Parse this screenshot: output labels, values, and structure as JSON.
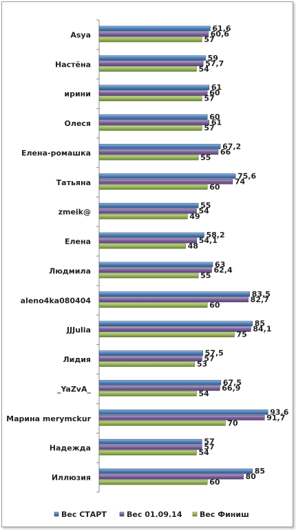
{
  "chart_data": {
    "type": "bar",
    "orientation": "horizontal",
    "categories": [
      "Asya",
      "Настёна",
      "ирини",
      "Олеся",
      "Елена-ромашка",
      "Татьяна",
      "zmeik@",
      "Елена",
      "Людмила",
      "aleno4ka080404",
      "JJJulia",
      "Лидия",
      "_YaZvA_",
      "Марина merymckur",
      "Надежда",
      "Иллюзия"
    ],
    "series": [
      {
        "name": "Вес СТАРТ",
        "color": "#4F81BD",
        "values": [
          61.6,
          59,
          61,
          60,
          67.2,
          75.6,
          55,
          58.2,
          63,
          83.5,
          85,
          57.5,
          67.5,
          93.6,
          57,
          85
        ]
      },
      {
        "name": "Вес 01.09.14",
        "color": "#8064A2",
        "values": [
          60.6,
          57.7,
          60,
          61,
          66,
          74,
          54,
          54.1,
          62.4,
          82.7,
          84.1,
          57,
          66.9,
          91.7,
          57,
          80
        ]
      },
      {
        "name": "Вес Финиш",
        "color": "#9BBB59",
        "values": [
          57,
          54,
          57,
          57,
          55,
          60,
          49,
          48,
          55,
          60,
          75,
          53,
          54,
          70,
          54,
          60
        ]
      }
    ],
    "labels": [
      [
        "61,6",
        "59",
        "61",
        "60",
        "67,2",
        "75,6",
        "55",
        "58,2",
        "63",
        "83,5",
        "85",
        "57,5",
        "67,5",
        "93,6",
        "57",
        "85"
      ],
      [
        "60,6",
        "57,7",
        "60",
        "61",
        "66",
        "74",
        "54",
        "54,1",
        "62,4",
        "82,7",
        "84,1",
        "57",
        "66,9",
        "91,7",
        "57",
        "80"
      ],
      [
        "57",
        "54",
        "57",
        "57",
        "55",
        "60",
        "49",
        "48",
        "55",
        "60",
        "75",
        "53",
        "54",
        "70",
        "54",
        "60"
      ]
    ],
    "title": "",
    "xlabel": "",
    "ylabel": "",
    "xlim": [
      0,
      100
    ],
    "grid": false,
    "legend": "bottom"
  }
}
